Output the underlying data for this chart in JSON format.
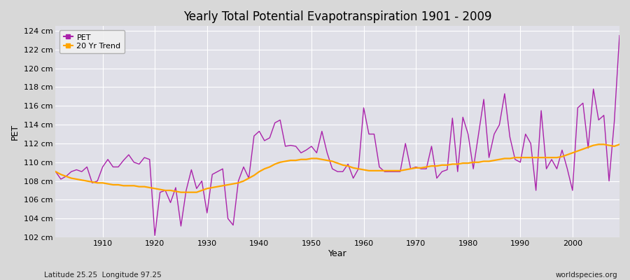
{
  "title": "Yearly Total Potential Evapotranspiration 1901 - 2009",
  "xlabel": "Year",
  "ylabel": "PET",
  "subtitle_left": "Latitude 25.25  Longitude 97.25",
  "subtitle_right": "worldspecies.org",
  "ylim": [
    102,
    124.5
  ],
  "ytick_values": [
    102,
    104,
    106,
    108,
    110,
    112,
    114,
    116,
    118,
    120,
    122,
    124
  ],
  "pet_color": "#AA22AA",
  "trend_color": "#FFA500",
  "fig_bg_color": "#D8D8D8",
  "plot_bg_color": "#E0E0E8",
  "grid_color": "#FFFFFF",
  "xtick_years": [
    1910,
    1920,
    1930,
    1940,
    1950,
    1960,
    1970,
    1980,
    1990,
    2000
  ],
  "years": [
    1901,
    1902,
    1903,
    1904,
    1905,
    1906,
    1907,
    1908,
    1909,
    1910,
    1911,
    1912,
    1913,
    1914,
    1915,
    1916,
    1917,
    1918,
    1919,
    1920,
    1921,
    1922,
    1923,
    1924,
    1925,
    1926,
    1927,
    1928,
    1929,
    1930,
    1931,
    1932,
    1933,
    1934,
    1935,
    1936,
    1937,
    1938,
    1939,
    1940,
    1941,
    1942,
    1943,
    1944,
    1945,
    1946,
    1947,
    1948,
    1949,
    1950,
    1951,
    1952,
    1953,
    1954,
    1955,
    1956,
    1957,
    1958,
    1959,
    1960,
    1961,
    1962,
    1963,
    1964,
    1965,
    1966,
    1967,
    1968,
    1969,
    1970,
    1971,
    1972,
    1973,
    1974,
    1975,
    1976,
    1977,
    1978,
    1979,
    1980,
    1981,
    1982,
    1983,
    1984,
    1985,
    1986,
    1987,
    1988,
    1989,
    1990,
    1991,
    1992,
    1993,
    1994,
    1995,
    1996,
    1997,
    1998,
    1999,
    2000,
    2001,
    2002,
    2003,
    2004,
    2005,
    2006,
    2007,
    2008,
    2009
  ],
  "pet_values": [
    109.0,
    108.2,
    108.5,
    109.0,
    109.2,
    109.0,
    109.5,
    107.8,
    108.0,
    109.5,
    110.3,
    109.5,
    109.5,
    110.2,
    110.8,
    110.0,
    109.8,
    110.5,
    110.3,
    102.2,
    106.8,
    107.0,
    105.7,
    107.3,
    103.2,
    107.0,
    109.2,
    107.2,
    108.0,
    104.6,
    108.7,
    109.0,
    109.3,
    104.0,
    103.3,
    108.0,
    109.5,
    108.3,
    112.8,
    113.3,
    112.3,
    112.6,
    114.2,
    114.5,
    111.7,
    111.8,
    111.7,
    111.0,
    111.3,
    111.7,
    111.0,
    113.3,
    111.0,
    109.3,
    109.0,
    109.0,
    109.8,
    108.3,
    109.3,
    115.8,
    113.0,
    113.0,
    109.5,
    109.0,
    109.0,
    109.0,
    109.0,
    112.0,
    109.3,
    109.5,
    109.3,
    109.3,
    111.7,
    108.3,
    109.0,
    109.2,
    114.7,
    109.0,
    114.8,
    113.0,
    109.3,
    113.0,
    116.7,
    110.5,
    113.0,
    114.0,
    117.3,
    112.7,
    110.3,
    110.0,
    113.0,
    112.0,
    107.0,
    115.5,
    109.3,
    110.3,
    109.3,
    111.3,
    109.3,
    107.0,
    115.8,
    116.3,
    111.5,
    117.8,
    114.5,
    115.0,
    108.0,
    114.3,
    123.5
  ],
  "trend_values": [
    109.0,
    108.7,
    108.5,
    108.3,
    108.2,
    108.1,
    108.0,
    107.9,
    107.8,
    107.8,
    107.7,
    107.6,
    107.6,
    107.5,
    107.5,
    107.5,
    107.4,
    107.4,
    107.3,
    107.2,
    107.1,
    107.0,
    107.0,
    106.9,
    106.8,
    106.8,
    106.8,
    106.8,
    107.0,
    107.2,
    107.3,
    107.4,
    107.5,
    107.6,
    107.7,
    107.8,
    108.0,
    108.3,
    108.6,
    109.0,
    109.3,
    109.5,
    109.8,
    110.0,
    110.1,
    110.2,
    110.2,
    110.3,
    110.3,
    110.4,
    110.4,
    110.3,
    110.2,
    110.1,
    109.9,
    109.7,
    109.6,
    109.4,
    109.3,
    109.2,
    109.1,
    109.1,
    109.1,
    109.1,
    109.1,
    109.1,
    109.1,
    109.2,
    109.3,
    109.4,
    109.4,
    109.5,
    109.6,
    109.6,
    109.7,
    109.7,
    109.8,
    109.8,
    109.9,
    109.9,
    110.0,
    110.0,
    110.1,
    110.1,
    110.2,
    110.3,
    110.4,
    110.4,
    110.5,
    110.5,
    110.5,
    110.5,
    110.5,
    110.5,
    110.5,
    110.5,
    110.5,
    110.6,
    110.8,
    111.0,
    111.2,
    111.4,
    111.6,
    111.8,
    111.9,
    111.9,
    111.8,
    111.7,
    111.9
  ]
}
